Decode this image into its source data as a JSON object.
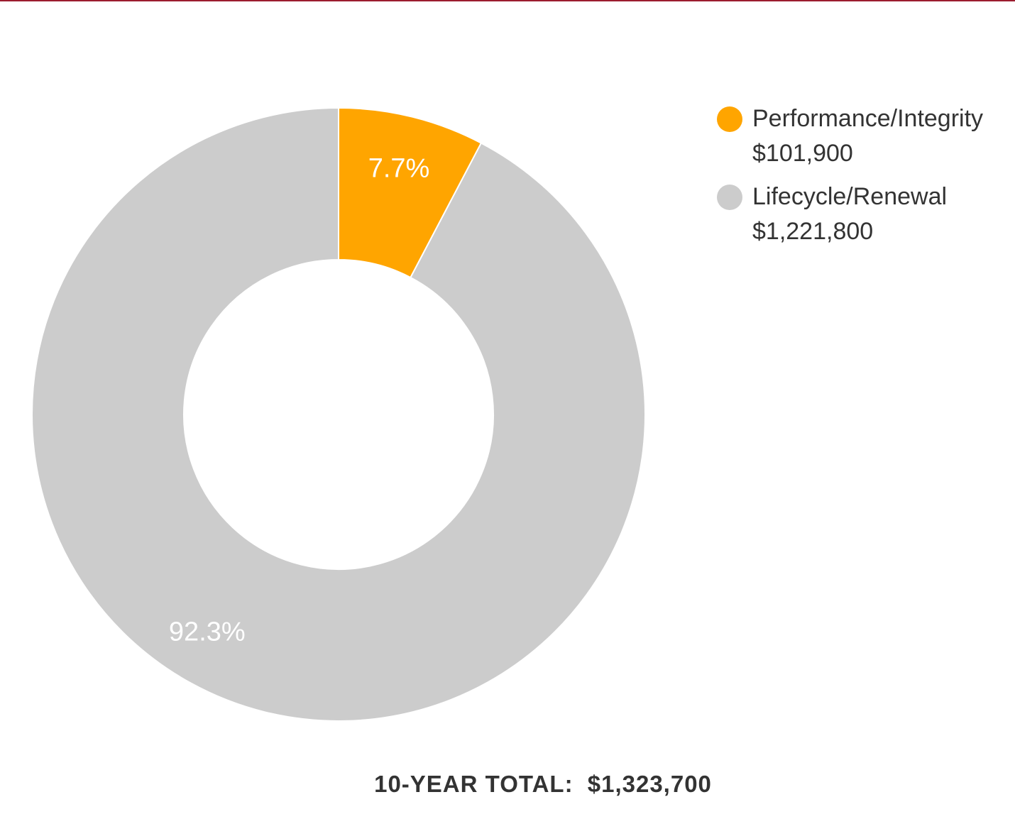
{
  "chart_data": {
    "type": "pie",
    "title": "",
    "donut": true,
    "slices": [
      {
        "label": "Performance/Integrity",
        "value_text": "$101,900",
        "value": 101900,
        "percent_label": "7.7%",
        "color": "#ffa500"
      },
      {
        "label": "Lifecycle/Renewal",
        "value_text": "$1,221,800",
        "value": 1221800,
        "percent_label": "92.3%",
        "color": "#cccccc"
      }
    ],
    "legend_position": "right",
    "total_label": "10-YEAR TOTAL:",
    "total_value": "$1,323,700"
  },
  "colors": {
    "accent_rule": "#9b1c2e",
    "label_text": "#ffffff",
    "body_text": "#333333"
  }
}
